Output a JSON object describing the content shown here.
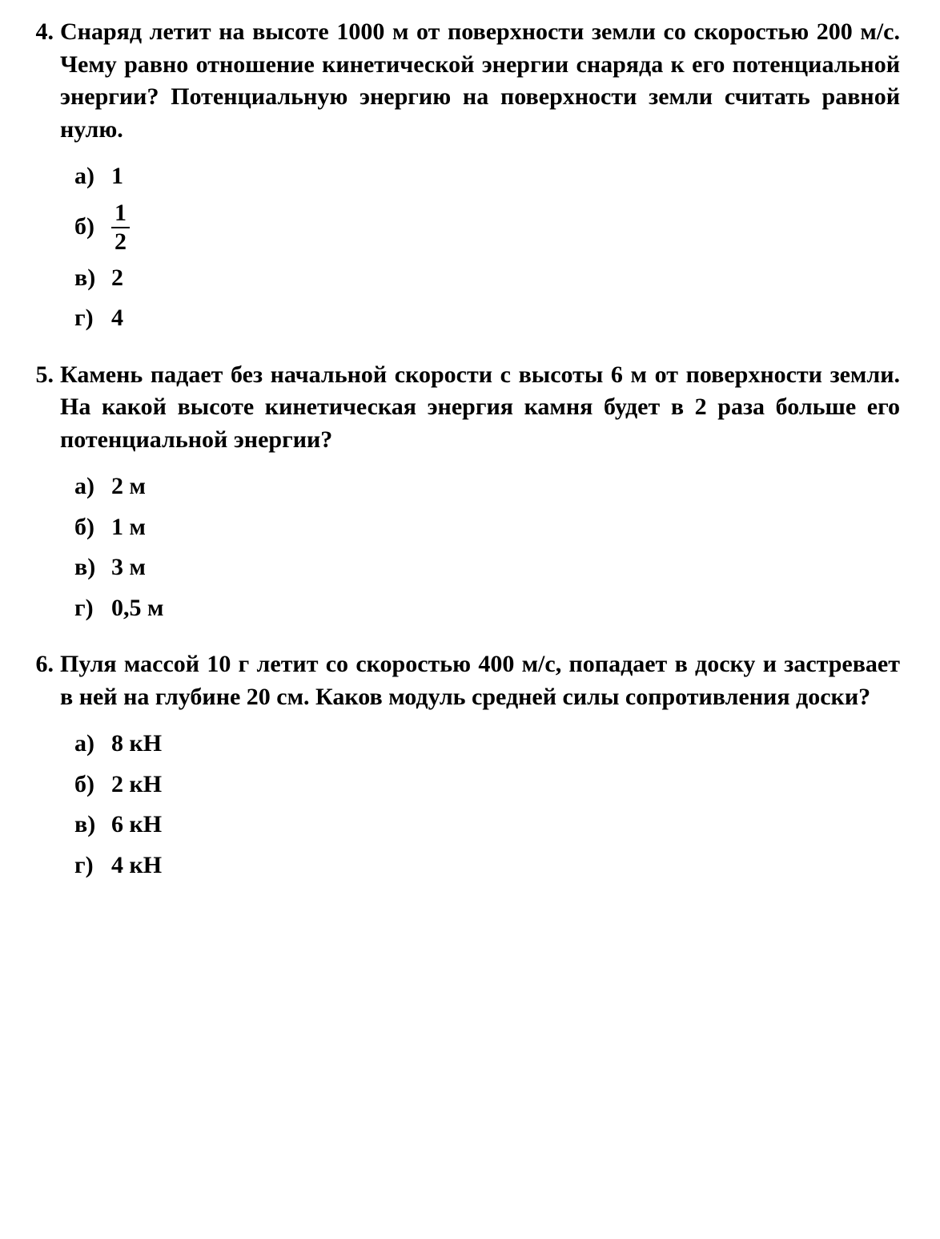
{
  "text_color": "#000000",
  "background_color": "#ffffff",
  "font_family": "Georgia, Times New Roman, serif",
  "font_size_pt": 22,
  "font_weight": "bold",
  "questions": [
    {
      "number": "4.",
      "text": "Снаряд летит на высоте 1000 м от поверхности земли со скоростью 200 м/с. Чему равно отношение кинетической энергии снаряда к его потенциальной энергии? Потенциальную энергию на поверхности земли считать равной нулю.",
      "options": [
        {
          "label": "а)",
          "value": "1",
          "is_fraction": false
        },
        {
          "label": "б)",
          "value": "1/2",
          "is_fraction": true,
          "num": "1",
          "den": "2"
        },
        {
          "label": "в)",
          "value": "2",
          "is_fraction": false
        },
        {
          "label": "г)",
          "value": "4",
          "is_fraction": false
        }
      ]
    },
    {
      "number": "5.",
      "text": "Камень падает без начальной скорости с высоты 6 м от поверхности земли. На какой высоте кинетическая энергия камня будет в 2 раза больше его потенциальной энергии?",
      "options": [
        {
          "label": "а)",
          "value": "2 м",
          "is_fraction": false
        },
        {
          "label": "б)",
          "value": "1 м",
          "is_fraction": false
        },
        {
          "label": "в)",
          "value": "3 м",
          "is_fraction": false
        },
        {
          "label": "г)",
          "value": "0,5 м",
          "is_fraction": false
        }
      ]
    },
    {
      "number": "6.",
      "text": "Пуля массой 10 г летит со скоростью 400 м/с, попадает в доску и застревает в ней на глубине 20 см. Каков модуль средней силы сопротивления доски?",
      "options": [
        {
          "label": "а)",
          "value": "8 кН",
          "is_fraction": false
        },
        {
          "label": "б)",
          "value": "2 кН",
          "is_fraction": false
        },
        {
          "label": "в)",
          "value": "6 кН",
          "is_fraction": false
        },
        {
          "label": "г)",
          "value": "4 кН",
          "is_fraction": false
        }
      ]
    }
  ]
}
